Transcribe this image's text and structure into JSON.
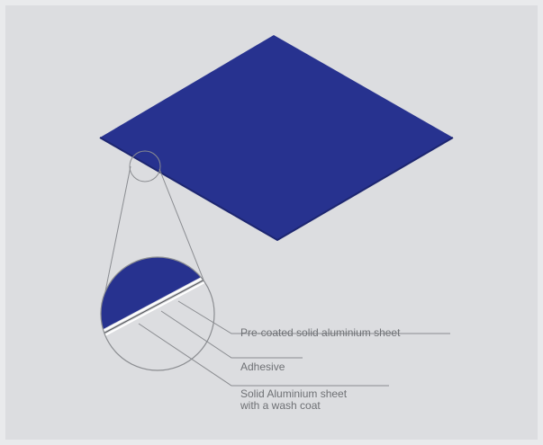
{
  "colors": {
    "background": "#dcdde0",
    "sheet": "#27328f",
    "line": "#8a8c90",
    "text": "#6f7175"
  },
  "labels": {
    "layer1": "Pre-coated solid aluminium sheet",
    "layer2": "Adhesive",
    "layer3_line1": "Solid Aluminium sheet",
    "layer3_line2": "with a wash coat"
  }
}
